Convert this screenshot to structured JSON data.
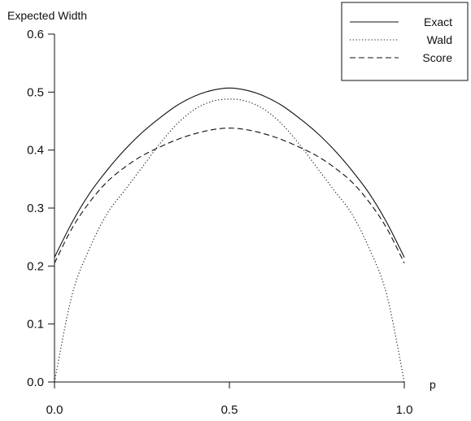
{
  "chart_data": {
    "type": "line",
    "title": "",
    "ylabel": "Expected Width",
    "xlabel": "p",
    "xlim": [
      0,
      1
    ],
    "ylim": [
      0,
      0.6
    ],
    "x_ticks": [
      "0.0",
      "0.5",
      "1.0"
    ],
    "y_ticks": [
      "0.0",
      "0.1",
      "0.2",
      "0.3",
      "0.4",
      "0.5",
      "0.6"
    ],
    "grid": false,
    "legend_position": "top-right",
    "series": [
      {
        "name": "Exact",
        "style": "solid",
        "x": [
          0,
          0.05,
          0.1,
          0.15,
          0.2,
          0.25,
          0.3,
          0.35,
          0.4,
          0.45,
          0.5,
          0.55,
          0.6,
          0.65,
          0.7,
          0.75,
          0.8,
          0.85,
          0.9,
          0.95,
          1
        ],
        "y": [
          0.215,
          0.275,
          0.325,
          0.365,
          0.4,
          0.43,
          0.455,
          0.477,
          0.493,
          0.503,
          0.507,
          0.503,
          0.493,
          0.477,
          0.455,
          0.43,
          0.4,
          0.365,
          0.325,
          0.275,
          0.215
        ]
      },
      {
        "name": "Wald",
        "style": "dotted",
        "x": [
          0,
          0.05,
          0.1,
          0.15,
          0.2,
          0.25,
          0.3,
          0.35,
          0.4,
          0.45,
          0.5,
          0.55,
          0.6,
          0.65,
          0.7,
          0.75,
          0.8,
          0.85,
          0.9,
          0.95,
          1
        ],
        "y": [
          0.0,
          0.15,
          0.23,
          0.29,
          0.33,
          0.37,
          0.41,
          0.445,
          0.47,
          0.484,
          0.488,
          0.484,
          0.47,
          0.445,
          0.41,
          0.37,
          0.33,
          0.29,
          0.23,
          0.15,
          0.0
        ]
      },
      {
        "name": "Score",
        "style": "dashed",
        "x": [
          0,
          0.05,
          0.1,
          0.15,
          0.2,
          0.25,
          0.3,
          0.35,
          0.4,
          0.45,
          0.5,
          0.55,
          0.6,
          0.65,
          0.7,
          0.75,
          0.8,
          0.85,
          0.9,
          0.95,
          1
        ],
        "y": [
          0.205,
          0.265,
          0.31,
          0.345,
          0.37,
          0.39,
          0.405,
          0.418,
          0.428,
          0.435,
          0.438,
          0.435,
          0.428,
          0.418,
          0.405,
          0.39,
          0.37,
          0.345,
          0.31,
          0.265,
          0.205
        ]
      }
    ]
  }
}
